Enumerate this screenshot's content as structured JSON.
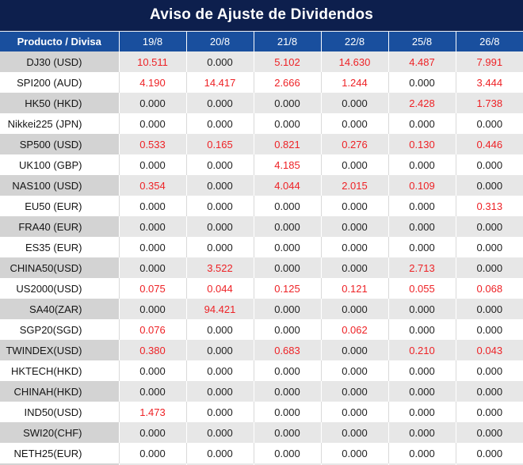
{
  "title": "Aviso de Ajuste de Dividendos",
  "table": {
    "product_header": "Producto / Divisa",
    "date_headers": [
      "19/8",
      "20/8",
      "21/8",
      "22/8",
      "25/8",
      "26/8"
    ],
    "rows": [
      {
        "product": "DJ30 (USD)",
        "values": [
          "10.511",
          "0.000",
          "5.102",
          "14.630",
          "4.487",
          "7.991"
        ]
      },
      {
        "product": "SPI200 (AUD)",
        "values": [
          "4.190",
          "14.417",
          "2.666",
          "1.244",
          "0.000",
          "3.444"
        ]
      },
      {
        "product": "HK50 (HKD)",
        "values": [
          "0.000",
          "0.000",
          "0.000",
          "0.000",
          "2.428",
          "1.738"
        ]
      },
      {
        "product": "Nikkei225 (JPN)",
        "values": [
          "0.000",
          "0.000",
          "0.000",
          "0.000",
          "0.000",
          "0.000"
        ]
      },
      {
        "product": "SP500 (USD)",
        "values": [
          "0.533",
          "0.165",
          "0.821",
          "0.276",
          "0.130",
          "0.446"
        ]
      },
      {
        "product": "UK100 (GBP)",
        "values": [
          "0.000",
          "0.000",
          "4.185",
          "0.000",
          "0.000",
          "0.000"
        ]
      },
      {
        "product": "NAS100 (USD)",
        "values": [
          "0.354",
          "0.000",
          "4.044",
          "2.015",
          "0.109",
          "0.000"
        ]
      },
      {
        "product": "EU50 (EUR)",
        "values": [
          "0.000",
          "0.000",
          "0.000",
          "0.000",
          "0.000",
          "0.313"
        ]
      },
      {
        "product": "FRA40 (EUR)",
        "values": [
          "0.000",
          "0.000",
          "0.000",
          "0.000",
          "0.000",
          "0.000"
        ]
      },
      {
        "product": "ES35 (EUR)",
        "values": [
          "0.000",
          "0.000",
          "0.000",
          "0.000",
          "0.000",
          "0.000"
        ]
      },
      {
        "product": "CHINA50(USD)",
        "values": [
          "0.000",
          "3.522",
          "0.000",
          "0.000",
          "2.713",
          "0.000"
        ]
      },
      {
        "product": "US2000(USD)",
        "values": [
          "0.075",
          "0.044",
          "0.125",
          "0.121",
          "0.055",
          "0.068"
        ]
      },
      {
        "product": "SA40(ZAR)",
        "values": [
          "0.000",
          "94.421",
          "0.000",
          "0.000",
          "0.000",
          "0.000"
        ]
      },
      {
        "product": "SGP20(SGD)",
        "values": [
          "0.076",
          "0.000",
          "0.000",
          "0.062",
          "0.000",
          "0.000"
        ]
      },
      {
        "product": "TWINDEX(USD)",
        "values": [
          "0.380",
          "0.000",
          "0.683",
          "0.000",
          "0.210",
          "0.043"
        ]
      },
      {
        "product": "HKTECH(HKD)",
        "values": [
          "0.000",
          "0.000",
          "0.000",
          "0.000",
          "0.000",
          "0.000"
        ]
      },
      {
        "product": "CHINAH(HKD)",
        "values": [
          "0.000",
          "0.000",
          "0.000",
          "0.000",
          "0.000",
          "0.000"
        ]
      },
      {
        "product": "IND50(USD)",
        "values": [
          "1.473",
          "0.000",
          "0.000",
          "0.000",
          "0.000",
          "0.000"
        ]
      },
      {
        "product": "SWI20(CHF)",
        "values": [
          "0.000",
          "0.000",
          "0.000",
          "0.000",
          "0.000",
          "0.000"
        ]
      },
      {
        "product": "NETH25(EUR)",
        "values": [
          "0.000",
          "0.000",
          "0.000",
          "0.000",
          "0.000",
          "0.000"
        ]
      }
    ]
  },
  "colors": {
    "title_bg": "#0d1f4d",
    "header_bg": "#194f9e",
    "header_text": "#ffffff",
    "stripe_label_bg": "#d3d3d3",
    "stripe_value_bg": "#e7e7e7",
    "zero_value_text": "#1f1f1f",
    "nonzero_value_text": "#ee2226"
  },
  "chart_data": {
    "type": "table",
    "title": "Aviso de Ajuste de Dividendos",
    "columns": [
      "Producto / Divisa",
      "19/8",
      "20/8",
      "21/8",
      "22/8",
      "25/8",
      "26/8"
    ],
    "rows": [
      [
        "DJ30 (USD)",
        10.511,
        0.0,
        5.102,
        14.63,
        4.487,
        7.991
      ],
      [
        "SPI200 (AUD)",
        4.19,
        14.417,
        2.666,
        1.244,
        0.0,
        3.444
      ],
      [
        "HK50 (HKD)",
        0.0,
        0.0,
        0.0,
        0.0,
        2.428,
        1.738
      ],
      [
        "Nikkei225 (JPN)",
        0.0,
        0.0,
        0.0,
        0.0,
        0.0,
        0.0
      ],
      [
        "SP500 (USD)",
        0.533,
        0.165,
        0.821,
        0.276,
        0.13,
        0.446
      ],
      [
        "UK100 (GBP)",
        0.0,
        0.0,
        4.185,
        0.0,
        0.0,
        0.0
      ],
      [
        "NAS100 (USD)",
        0.354,
        0.0,
        4.044,
        2.015,
        0.109,
        0.0
      ],
      [
        "EU50 (EUR)",
        0.0,
        0.0,
        0.0,
        0.0,
        0.0,
        0.313
      ],
      [
        "FRA40 (EUR)",
        0.0,
        0.0,
        0.0,
        0.0,
        0.0,
        0.0
      ],
      [
        "ES35 (EUR)",
        0.0,
        0.0,
        0.0,
        0.0,
        0.0,
        0.0
      ],
      [
        "CHINA50(USD)",
        0.0,
        3.522,
        0.0,
        0.0,
        2.713,
        0.0
      ],
      [
        "US2000(USD)",
        0.075,
        0.044,
        0.125,
        0.121,
        0.055,
        0.068
      ],
      [
        "SA40(ZAR)",
        0.0,
        94.421,
        0.0,
        0.0,
        0.0,
        0.0
      ],
      [
        "SGP20(SGD)",
        0.076,
        0.0,
        0.0,
        0.062,
        0.0,
        0.0
      ],
      [
        "TWINDEX(USD)",
        0.38,
        0.0,
        0.683,
        0.0,
        0.21,
        0.043
      ],
      [
        "HKTECH(HKD)",
        0.0,
        0.0,
        0.0,
        0.0,
        0.0,
        0.0
      ],
      [
        "CHINAH(HKD)",
        0.0,
        0.0,
        0.0,
        0.0,
        0.0,
        0.0
      ],
      [
        "IND50(USD)",
        1.473,
        0.0,
        0.0,
        0.0,
        0.0,
        0.0
      ],
      [
        "SWI20(CHF)",
        0.0,
        0.0,
        0.0,
        0.0,
        0.0,
        0.0
      ],
      [
        "NETH25(EUR)",
        0.0,
        0.0,
        0.0,
        0.0,
        0.0,
        0.0
      ]
    ],
    "layout_hints": {
      "striped_rows": true,
      "nonzero_values_rendered_red": true,
      "header_style": "dark navy title bar over blue column-header row"
    }
  }
}
